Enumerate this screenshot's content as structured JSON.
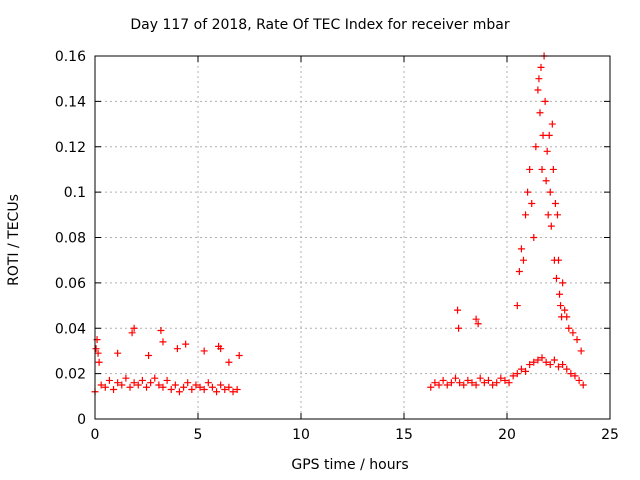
{
  "chart_data": {
    "type": "scatter",
    "title": "Day 117 of 2018, Rate Of TEC Index for receiver mbar",
    "xlabel": "GPS time / hours",
    "ylabel": "ROTI / TECUs",
    "xlim": [
      0,
      25
    ],
    "ylim": [
      0,
      0.16
    ],
    "x_ticks": [
      0,
      5,
      10,
      15,
      20,
      25
    ],
    "y_ticks": [
      0,
      0.02,
      0.04,
      0.06,
      0.08,
      0.1,
      0.12,
      0.14,
      0.16
    ],
    "x_tick_labels": [
      "0",
      "5",
      "10",
      "15",
      "20",
      "25"
    ],
    "y_tick_labels": [
      "0",
      "0.02",
      "0.04",
      "0.06",
      "0.08",
      "0.1",
      "0.12",
      "0.14",
      "0.16"
    ],
    "grid": true,
    "marker": "+",
    "color": "#ff0000",
    "series": [
      {
        "name": "ROTI",
        "x": [
          0.0,
          0.1,
          0.2,
          0.3,
          0.5,
          0.7,
          0.9,
          1.1,
          1.3,
          1.5,
          1.7,
          1.9,
          2.1,
          2.3,
          2.5,
          2.7,
          2.9,
          3.1,
          3.3,
          3.5,
          3.7,
          3.9,
          4.1,
          4.3,
          4.5,
          4.7,
          4.9,
          5.1,
          5.3,
          5.5,
          5.7,
          5.9,
          6.1,
          6.3,
          6.5,
          6.7,
          6.9,
          0.05,
          0.15,
          1.1,
          1.8,
          1.9,
          2.6,
          3.2,
          3.3,
          4.0,
          4.4,
          5.3,
          6.0,
          6.1,
          6.5,
          7.0,
          16.3,
          16.5,
          16.7,
          16.9,
          17.1,
          17.3,
          17.5,
          17.7,
          17.9,
          18.1,
          18.3,
          18.5,
          18.7,
          18.9,
          19.1,
          19.3,
          19.5,
          19.7,
          19.9,
          20.1,
          20.3,
          20.5,
          20.7,
          20.9,
          21.1,
          21.3,
          21.5,
          21.7,
          21.9,
          22.1,
          22.3,
          22.5,
          22.7,
          22.9,
          23.1,
          23.3,
          23.5,
          23.7,
          17.6,
          17.65,
          18.5,
          18.6,
          20.5,
          20.6,
          20.7,
          20.8,
          20.9,
          21.0,
          21.1,
          21.2,
          21.3,
          21.4,
          21.5,
          21.55,
          21.6,
          21.65,
          21.7,
          21.75,
          21.8,
          21.85,
          21.9,
          21.95,
          22.0,
          22.05,
          22.1,
          22.15,
          22.2,
          22.25,
          22.3,
          22.35,
          22.4,
          22.45,
          22.5,
          22.55,
          22.6,
          22.65,
          22.7,
          22.8,
          22.9,
          23.0,
          23.2,
          23.4,
          23.6
        ],
        "y": [
          0.012,
          0.035,
          0.025,
          0.015,
          0.014,
          0.017,
          0.013,
          0.016,
          0.015,
          0.018,
          0.014,
          0.016,
          0.015,
          0.017,
          0.014,
          0.016,
          0.018,
          0.015,
          0.014,
          0.017,
          0.013,
          0.015,
          0.012,
          0.014,
          0.016,
          0.013,
          0.015,
          0.014,
          0.013,
          0.016,
          0.014,
          0.012,
          0.015,
          0.013,
          0.014,
          0.012,
          0.013,
          0.031,
          0.029,
          0.029,
          0.038,
          0.04,
          0.028,
          0.039,
          0.034,
          0.031,
          0.033,
          0.03,
          0.032,
          0.031,
          0.025,
          0.028,
          0.014,
          0.016,
          0.015,
          0.017,
          0.015,
          0.016,
          0.018,
          0.016,
          0.015,
          0.017,
          0.016,
          0.015,
          0.018,
          0.016,
          0.017,
          0.015,
          0.016,
          0.018,
          0.017,
          0.016,
          0.019,
          0.02,
          0.022,
          0.021,
          0.024,
          0.025,
          0.026,
          0.027,
          0.025,
          0.024,
          0.026,
          0.023,
          0.024,
          0.022,
          0.02,
          0.019,
          0.017,
          0.015,
          0.048,
          0.04,
          0.044,
          0.042,
          0.05,
          0.065,
          0.075,
          0.07,
          0.09,
          0.1,
          0.11,
          0.095,
          0.08,
          0.12,
          0.145,
          0.15,
          0.135,
          0.155,
          0.11,
          0.125,
          0.16,
          0.14,
          0.105,
          0.118,
          0.09,
          0.125,
          0.1,
          0.085,
          0.13,
          0.11,
          0.07,
          0.095,
          0.062,
          0.09,
          0.07,
          0.055,
          0.05,
          0.045,
          0.06,
          0.048,
          0.045,
          0.04,
          0.038,
          0.035,
          0.03
        ]
      }
    ]
  }
}
